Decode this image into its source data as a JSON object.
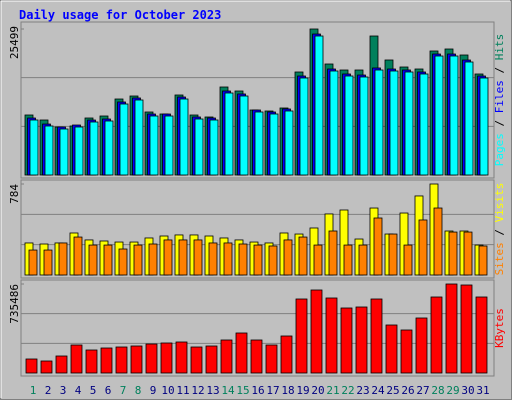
{
  "title": "Daily usage for October 2023",
  "legend_separator": " / ",
  "chart_data": [
    {
      "type": "bar",
      "series": [
        {
          "name": "Hits",
          "color": "#00805c",
          "values": [
            10479,
            9606,
            8383,
            8558,
            9955,
            10304,
            13273,
            13797,
            11003,
            10654,
            13972,
            10479,
            10130,
            15369,
            14671,
            11352,
            11178,
            11702,
            17989,
            25499,
            19386,
            18338,
            18338,
            24276,
            20085,
            18862,
            18513,
            21657,
            22006,
            20958,
            17640
          ]
        },
        {
          "name": "Files",
          "color": "#0000ff",
          "values": [
            9950,
            8900,
            8380,
            8730,
            9600,
            9780,
            12750,
            13450,
            10650,
            10650,
            13620,
            10130,
            9950,
            14670,
            14150,
            11350,
            11000,
            11530,
            17290,
            24620,
            18510,
            17640,
            17460,
            18690,
            18510,
            18340,
            17990,
            21130,
            21130,
            20080,
            17290
          ]
        },
        {
          "name": "Pages",
          "color": "#00ffff",
          "values": [
            9606,
            8558,
            8034,
            8383,
            9256,
            9431,
            12400,
            13099,
            10304,
            10304,
            13273,
            9780,
            9606,
            14321,
            13797,
            11003,
            10654,
            11178,
            16941,
            24276,
            18164,
            17290,
            17116,
            18338,
            18164,
            17989,
            17640,
            20783,
            20783,
            19735,
            16941
          ]
        }
      ],
      "ylim": [
        0,
        25499
      ],
      "yticks": [
        25499
      ]
    },
    {
      "type": "bar",
      "series": [
        {
          "name": "Visits",
          "color": "#ffff00",
          "values": [
            276,
            267,
            276,
            362,
            302,
            293,
            284,
            284,
            319,
            336,
            345,
            345,
            336,
            319,
            302,
            284,
            276,
            362,
            353,
            405,
            526,
            560,
            310,
            577,
            353,
            534,
            681,
            784,
            379,
            379,
            258
          ]
        },
        {
          "name": "Sites",
          "color": "#ff8000",
          "values": [
            215,
            215,
            276,
            327,
            258,
            258,
            224,
            258,
            267,
            302,
            302,
            302,
            276,
            276,
            267,
            258,
            250,
            302,
            327,
            258,
            379,
            258,
            258,
            491,
            353,
            258,
            474,
            577,
            370,
            370,
            250
          ]
        }
      ],
      "ylim": [
        0,
        784
      ],
      "yticks": [
        784
      ]
    },
    {
      "type": "bar",
      "series": [
        {
          "name": "KBytes",
          "color": "#ff0000",
          "values": [
            115696,
            99168,
            140488,
            231392,
            190072,
            206600,
            214864,
            223128,
            239656,
            247920,
            256184,
            214864,
            223128,
            272712,
            330560,
            272712,
            231392,
            305768,
            611536,
            685912,
            619800,
            537160,
            545424,
            611536,
            396672,
            355352,
            454520,
            628064,
            735486,
            727232,
            628064
          ]
        }
      ],
      "ylim": [
        0,
        735486
      ],
      "yticks": [
        735486
      ],
      "categories": [
        "1",
        "2",
        "3",
        "4",
        "5",
        "6",
        "7",
        "8",
        "9",
        "10",
        "11",
        "12",
        "13",
        "14",
        "15",
        "16",
        "17",
        "18",
        "19",
        "20",
        "21",
        "22",
        "23",
        "24",
        "25",
        "26",
        "27",
        "28",
        "29",
        "30",
        "31"
      ],
      "highlighted": [
        0,
        6,
        7,
        13,
        14,
        20,
        21,
        27,
        28
      ],
      "highlight_color": "#00805c"
    }
  ]
}
